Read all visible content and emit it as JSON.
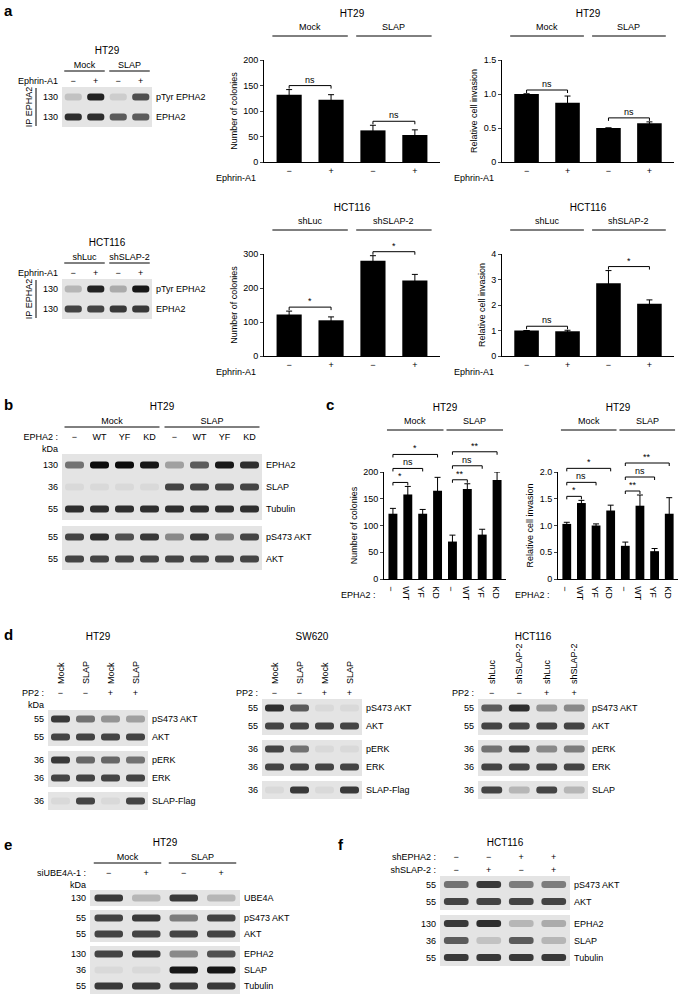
{
  "panel_labels": [
    "a",
    "b",
    "c",
    "d",
    "e",
    "f"
  ],
  "chart_data": [
    {
      "type": "bar",
      "title": "HT29",
      "y_label": "Number of colonies",
      "x_label": "Ephrin-A1",
      "categories": [
        "−",
        "+",
        "−",
        "+"
      ],
      "groups": [
        {
          "label": "Mock",
          "from": 0,
          "to": 1
        },
        {
          "label": "SLAP",
          "from": 2,
          "to": 3
        }
      ],
      "values": [
        132,
        122,
        62,
        53
      ],
      "errors": [
        10,
        10,
        10,
        10
      ],
      "color": "#000000",
      "ylim": [
        0,
        200
      ],
      "yticks": [
        0,
        50,
        100,
        150,
        200
      ],
      "grid": false,
      "annotations": [
        {
          "text": "ns",
          "from": 0,
          "to": 1
        },
        {
          "text": "ns",
          "from": 2,
          "to": 3
        }
      ]
    },
    {
      "type": "bar",
      "title": "HT29",
      "y_label": "Relative cell invasion",
      "x_label": "Ephrin-A1",
      "categories": [
        "−",
        "+",
        "−",
        "+"
      ],
      "groups": [
        {
          "label": "Mock",
          "from": 0,
          "to": 1
        },
        {
          "label": "SLAP",
          "from": 2,
          "to": 3
        }
      ],
      "values": [
        1.0,
        0.87,
        0.5,
        0.57
      ],
      "errors": [
        0,
        0.1,
        0,
        0.02
      ],
      "color": "#000000",
      "ylim": [
        0,
        1.5
      ],
      "yticks": [
        0,
        0.5,
        {
          "value": 1,
          "label": "1.0"
        },
        1.5
      ],
      "grid": false,
      "annotations": [
        {
          "text": "ns",
          "from": 0,
          "to": 1
        },
        {
          "text": "ns",
          "from": 2,
          "to": 3
        }
      ]
    },
    {
      "type": "bar",
      "title": "HCT116",
      "y_label": "Number of colonies",
      "x_label": "Ephrin-A1",
      "categories": [
        "−",
        "+",
        "−",
        "+"
      ],
      "groups": [
        {
          "label": "shLuc",
          "from": 0,
          "to": 1
        },
        {
          "label": "shSLAP-2",
          "from": 2,
          "to": 3
        }
      ],
      "values": [
        122,
        105,
        280,
        222
      ],
      "errors": [
        10,
        10,
        15,
        18
      ],
      "color": "#000000",
      "ylim": [
        0,
        300
      ],
      "yticks": [
        0,
        100,
        200,
        300
      ],
      "grid": false,
      "annotations": [
        {
          "text": "*",
          "from": 0,
          "to": 1
        },
        {
          "text": "*",
          "from": 2,
          "to": 3
        }
      ]
    },
    {
      "type": "bar",
      "title": "HCT116",
      "y_label": "Relative cell invasion",
      "x_label": "Ephrin-A1",
      "categories": [
        "−",
        "+",
        "−",
        "+"
      ],
      "groups": [
        {
          "label": "shLuc",
          "from": 0,
          "to": 1
        },
        {
          "label": "shSLAP-2",
          "from": 2,
          "to": 3
        }
      ],
      "values": [
        1.0,
        0.97,
        2.85,
        2.05
      ],
      "errors": [
        0,
        0.04,
        0.5,
        0.15
      ],
      "color": "#000000",
      "ylim": [
        0,
        4
      ],
      "yticks": [
        0,
        1,
        2,
        3,
        4
      ],
      "grid": false,
      "annotations": [
        {
          "text": "ns",
          "from": 0,
          "to": 1
        },
        {
          "text": "*",
          "from": 2,
          "to": 3
        }
      ]
    },
    {
      "type": "bar",
      "title": "HT29",
      "y_label": "Number of colonies",
      "x_label": "EPHA2 :",
      "categories": [
        "−",
        "WT",
        "YF",
        "KD",
        "−",
        "WT",
        "YF",
        "KD"
      ],
      "groups": [
        {
          "label": "Mock",
          "from": 0,
          "to": 3
        },
        {
          "label": "SLAP",
          "from": 4,
          "to": 7
        }
      ],
      "values": [
        122,
        158,
        122,
        165,
        70,
        168,
        83,
        185
      ],
      "errors": [
        10,
        15,
        8,
        25,
        12,
        10,
        10,
        15
      ],
      "color": "#000000",
      "ylim": [
        0,
        200
      ],
      "yticks": [
        0,
        50,
        100,
        150,
        200
      ],
      "grid": false,
      "annotations": [
        {
          "text": "*",
          "from": 0,
          "to": 1
        },
        {
          "text": "ns",
          "from": 0,
          "to": 2
        },
        {
          "text": "*",
          "from": 0,
          "to": 3
        },
        {
          "text": "**",
          "from": 4,
          "to": 5
        },
        {
          "text": "ns",
          "from": 4,
          "to": 6
        },
        {
          "text": "**",
          "from": 4,
          "to": 7
        }
      ]
    },
    {
      "type": "bar",
      "title": "HT29",
      "y_label": "Relative cell invasion",
      "x_label": "EPHA2 :",
      "categories": [
        "−",
        "WT",
        "YF",
        "KD",
        "−",
        "WT",
        "YF",
        "KD"
      ],
      "groups": [
        {
          "label": "Mock",
          "from": 0,
          "to": 3
        },
        {
          "label": "SLAP",
          "from": 4,
          "to": 7
        }
      ],
      "values": [
        1.03,
        1.42,
        1.0,
        1.28,
        0.62,
        1.37,
        0.52,
        1.22
      ],
      "errors": [
        0.03,
        0.05,
        0.03,
        0.1,
        0.07,
        0.2,
        0.05,
        0.3
      ],
      "color": "#000000",
      "ylim": [
        0,
        2
      ],
      "yticks": [
        0,
        0.5,
        {
          "value": 1,
          "label": "1.0"
        },
        1.5,
        {
          "value": 2,
          "label": "2.0"
        }
      ],
      "grid": false,
      "annotations": [
        {
          "text": "*",
          "from": 0,
          "to": 1
        },
        {
          "text": "ns",
          "from": 0,
          "to": 2
        },
        {
          "text": "*",
          "from": 0,
          "to": 3
        },
        {
          "text": "**",
          "from": 4,
          "to": 5
        },
        {
          "text": "ns",
          "from": 4,
          "to": 6
        },
        {
          "text": "**",
          "from": 4,
          "to": 7
        }
      ]
    }
  ],
  "blots": [
    {
      "title": "HT29",
      "groups": [
        {
          "label": "Mock",
          "from": 0,
          "to": 1
        },
        {
          "label": "SLAP",
          "from": 2,
          "to": 3
        }
      ],
      "header_rows": [
        {
          "label": "Ephrin-A1",
          "values": [
            "−",
            "+",
            "−",
            "+"
          ]
        }
      ],
      "side_label": "IP EPHA2",
      "strips": [
        [
          {
            "name": "pTyr EPHA2",
            "kda": 130,
            "bands": [
              0.15,
              0.85,
              0.1,
              0.65
            ]
          },
          {
            "name": "EPHA2",
            "kda": 130,
            "bands": [
              0.8,
              0.8,
              0.6,
              0.6
            ]
          }
        ]
      ]
    },
    {
      "title": "HCT116",
      "groups": [
        {
          "label": "shLuc",
          "from": 0,
          "to": 1
        },
        {
          "label": "shSLAP-2",
          "from": 2,
          "to": 3
        }
      ],
      "header_rows": [
        {
          "label": "Ephrin-A1",
          "values": [
            "−",
            "+",
            "−",
            "+"
          ]
        }
      ],
      "side_label": "IP EPHA2",
      "strips": [
        [
          {
            "name": "pTyr EPHA2",
            "kda": 130,
            "bands": [
              0.2,
              0.85,
              0.25,
              0.9
            ]
          },
          {
            "name": "EPHA2",
            "kda": 130,
            "bands": [
              0.7,
              0.7,
              0.75,
              0.75
            ]
          }
        ]
      ]
    },
    {
      "title": "HT29",
      "groups": [
        {
          "label": "Mock",
          "from": 0,
          "to": 3
        },
        {
          "label": "SLAP",
          "from": 4,
          "to": 7
        }
      ],
      "header_rows": [
        {
          "label": "EPHA2 :",
          "values": [
            "−",
            "WT",
            "YF",
            "KD",
            "−",
            "WT",
            "YF",
            "KD"
          ]
        }
      ],
      "kda_title": "kDa",
      "strips": [
        [
          {
            "name": "EPHA2",
            "kda": 130,
            "bands": [
              0.5,
              0.95,
              0.95,
              0.9,
              0.3,
              0.6,
              0.9,
              0.8
            ]
          },
          {
            "name": "SLAP",
            "kda": 36,
            "bands": [
              0.05,
              0.05,
              0.05,
              0.05,
              0.7,
              0.7,
              0.7,
              0.7
            ]
          },
          {
            "name": "Tubulin",
            "kda": 55,
            "bands": [
              0.8,
              0.8,
              0.8,
              0.8,
              0.8,
              0.8,
              0.8,
              0.8
            ]
          }
        ],
        [
          {
            "name": "pS473 AKT",
            "kda": 55,
            "bands": [
              0.7,
              0.8,
              0.65,
              0.75,
              0.4,
              0.75,
              0.45,
              0.7
            ]
          },
          {
            "name": "AKT",
            "kda": 55,
            "bands": [
              0.7,
              0.7,
              0.7,
              0.7,
              0.7,
              0.7,
              0.7,
              0.7
            ]
          }
        ]
      ]
    },
    {
      "title": "HT29",
      "lane_labels": [
        "Mock",
        "SLAP",
        "Mock",
        "SLAP"
      ],
      "header_rows": [
        {
          "label": "PP2 :",
          "values": [
            "−",
            "−",
            "+",
            "+"
          ]
        }
      ],
      "kda_title": "kDa",
      "strips": [
        [
          {
            "name": "pS473 AKT",
            "kda": 55,
            "bands": [
              0.75,
              0.5,
              0.35,
              0.3
            ]
          },
          {
            "name": "AKT",
            "kda": 55,
            "bands": [
              0.7,
              0.7,
              0.7,
              0.7
            ]
          }
        ],
        [
          {
            "name": "pERK",
            "kda": 36,
            "bands": [
              0.75,
              0.55,
              0.55,
              0.5
            ]
          },
          {
            "name": "ERK",
            "kda": 36,
            "bands": [
              0.7,
              0.7,
              0.7,
              0.7
            ]
          }
        ],
        [
          {
            "name": "SLAP-Flag",
            "kda": 36,
            "bands": [
              0.05,
              0.7,
              0.05,
              0.7
            ]
          }
        ]
      ]
    },
    {
      "title": "SW620",
      "lane_labels": [
        "Mock",
        "SLAP",
        "Mock",
        "SLAP"
      ],
      "header_rows": [
        {
          "label": "PP2 :",
          "values": [
            "−",
            "−",
            "+",
            "+"
          ]
        }
      ],
      "strips": [
        [
          {
            "name": "pS473 AKT",
            "kda": 55,
            "bands": [
              0.8,
              0.6,
              0.05,
              0.05
            ]
          },
          {
            "name": "AKT",
            "kda": 55,
            "bands": [
              0.7,
              0.7,
              0.7,
              0.7
            ]
          }
        ],
        [
          {
            "name": "pERK",
            "kda": 36,
            "bands": [
              0.7,
              0.5,
              0.05,
              0.05
            ]
          },
          {
            "name": "ERK",
            "kda": 36,
            "bands": [
              0.7,
              0.7,
              0.7,
              0.7
            ]
          }
        ],
        [
          {
            "name": "SLAP-Flag",
            "kda": 36,
            "bands": [
              0.05,
              0.75,
              0.05,
              0.75
            ]
          }
        ]
      ]
    },
    {
      "title": "HCT116",
      "lane_labels": [
        "shLuc",
        "shSLAP-2",
        "shLuc",
        "shSLAP-2"
      ],
      "header_rows": [
        {
          "label": "PP2 :",
          "values": [
            "−",
            "−",
            "+",
            "+"
          ]
        }
      ],
      "strips": [
        [
          {
            "name": "pS473 AKT",
            "kda": 55,
            "bands": [
              0.6,
              0.8,
              0.35,
              0.4
            ]
          },
          {
            "name": "AKT",
            "kda": 55,
            "bands": [
              0.7,
              0.7,
              0.7,
              0.7
            ]
          }
        ],
        [
          {
            "name": "pERK",
            "kda": 36,
            "bands": [
              0.5,
              0.7,
              0.4,
              0.45
            ]
          },
          {
            "name": "ERK",
            "kda": 36,
            "bands": [
              0.7,
              0.7,
              0.7,
              0.7
            ]
          }
        ],
        [
          {
            "name": "SLAP",
            "kda": 36,
            "bands": [
              0.7,
              0.2,
              0.7,
              0.2
            ]
          }
        ]
      ]
    },
    {
      "title": "HT29",
      "groups": [
        {
          "label": "Mock",
          "from": 0,
          "to": 1
        },
        {
          "label": "SLAP",
          "from": 2,
          "to": 3
        }
      ],
      "header_rows": [
        {
          "label": "siUBE4A-1 :",
          "values": [
            "−",
            "+",
            "−",
            "+"
          ]
        }
      ],
      "kda_title": "kDa",
      "strips": [
        [
          {
            "name": "UBE4A",
            "kda": 130,
            "bands": [
              0.75,
              0.2,
              0.75,
              0.2
            ]
          }
        ],
        [
          {
            "name": "pS473 AKT",
            "kda": 55,
            "bands": [
              0.7,
              0.75,
              0.45,
              0.7
            ]
          },
          {
            "name": "AKT",
            "kda": 55,
            "bands": [
              0.7,
              0.7,
              0.7,
              0.7
            ]
          }
        ],
        [
          {
            "name": "EPHA2",
            "kda": 130,
            "bands": [
              0.7,
              0.75,
              0.4,
              0.65
            ]
          },
          {
            "name": "SLAP",
            "kda": 36,
            "bands": [
              0.05,
              0.05,
              0.9,
              0.9
            ]
          },
          {
            "name": "Tubulin",
            "kda": 55,
            "bands": [
              0.75,
              0.75,
              0.75,
              0.75
            ]
          }
        ]
      ]
    },
    {
      "title": "HCT116",
      "header_rows": [
        {
          "label": "shEPHA2 :",
          "values": [
            "−",
            "−",
            "+",
            "+"
          ]
        },
        {
          "label": "shSLAP-2 :",
          "values": [
            "−",
            "+",
            "−",
            "+"
          ]
        }
      ],
      "strips": [
        [
          {
            "name": "pS473 AKT",
            "kda": 55,
            "bands": [
              0.5,
              0.75,
              0.45,
              0.45
            ]
          },
          {
            "name": "AKT",
            "kda": 55,
            "bands": [
              0.7,
              0.7,
              0.7,
              0.7
            ]
          }
        ],
        [
          {
            "name": "EPHA2",
            "kda": 130,
            "bands": [
              0.75,
              0.8,
              0.2,
              0.25
            ]
          },
          {
            "name": "SLAP",
            "kda": 36,
            "bands": [
              0.6,
              0.15,
              0.6,
              0.2
            ]
          },
          {
            "name": "Tubulin",
            "kda": 55,
            "bands": [
              0.75,
              0.75,
              0.75,
              0.75
            ]
          }
        ]
      ]
    }
  ]
}
